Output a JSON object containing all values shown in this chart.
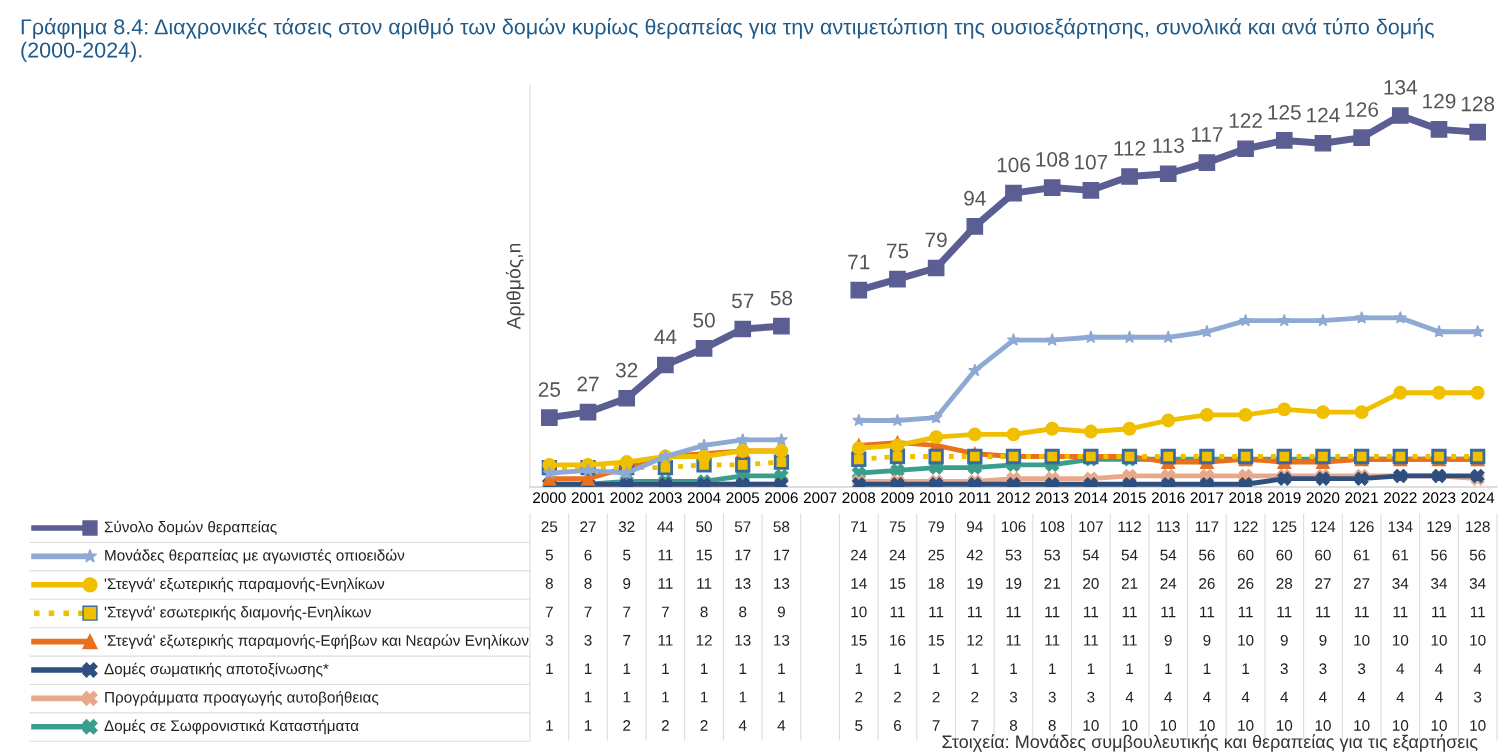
{
  "chart_data": {
    "type": "line",
    "title": "Γράφημα 8.4: Διαχρονικές τάσεις στον αριθμό των δομών κυρίως θεραπείας για την αντιμετώπιση της ουσιοεξάρτησης, συνολικά και ανά τύπο δομής (2000-2024).",
    "ylabel": "Αριθμός,n",
    "annotations": [
      "Στοιχεία: Μονάδες συμβουλευτικής και θεραπείας για τις εξαρτήσεις",
      {
        "text": "25",
        "x": "2000",
        "y": 25
      },
      {
        "text": "27",
        "x": "2001",
        "y": 27
      },
      {
        "text": "32",
        "x": "2002",
        "y": 32
      },
      {
        "text": "44",
        "x": "2003",
        "y": 44
      },
      {
        "text": "50",
        "x": "2004",
        "y": 50
      },
      {
        "text": "57",
        "x": "2005",
        "y": 57
      },
      {
        "text": "58",
        "x": "2006",
        "y": 58
      },
      {
        "text": "71",
        "x": "2008",
        "y": 71
      },
      {
        "text": "75",
        "x": "2009",
        "y": 75
      },
      {
        "text": "79",
        "x": "2010",
        "y": 79
      },
      {
        "text": "94",
        "x": "2011",
        "y": 94
      },
      {
        "text": "106",
        "x": "2012",
        "y": 106
      },
      {
        "text": "108",
        "x": "2013",
        "y": 108
      },
      {
        "text": "107",
        "x": "2014",
        "y": 107
      },
      {
        "text": "112",
        "x": "2015",
        "y": 112
      },
      {
        "text": "113",
        "x": "2016",
        "y": 113
      },
      {
        "text": "117",
        "x": "2017",
        "y": 117
      },
      {
        "text": "122",
        "x": "2018",
        "y": 122
      },
      {
        "text": "125",
        "x": "2019",
        "y": 125
      },
      {
        "text": "124",
        "x": "2020",
        "y": 124
      },
      {
        "text": "126",
        "x": "2021",
        "y": 126
      },
      {
        "text": "134",
        "x": "2022",
        "y": 134
      },
      {
        "text": "129",
        "x": "2023",
        "y": 129
      },
      {
        "text": "128",
        "x": "2024",
        "y": 128
      }
    ],
    "categories": [
      "2000",
      "2001",
      "2002",
      "2003",
      "2004",
      "2005",
      "2006",
      "2007",
      "2008",
      "2009",
      "2010",
      "2011",
      "2012",
      "2013",
      "2014",
      "2015",
      "2016",
      "2017",
      "2018",
      "2019",
      "2020",
      "2021",
      "2022",
      "2023",
      "2024"
    ],
    "ylim": [
      0,
      145
    ],
    "tick_labels": "x",
    "grid": false,
    "legend": "bottom left",
    "data_labels": true,
    "line_style": "solid",
    "series": [
      {
        "name": "Σύνολο δομών θεραπείας",
        "color": "#5b5e92",
        "marker": "square",
        "values": [
          25,
          27,
          32,
          44,
          50,
          57,
          58,
          null,
          71,
          75,
          79,
          94,
          106,
          108,
          107,
          112,
          113,
          117,
          122,
          125,
          124,
          126,
          134,
          129,
          128
        ]
      },
      {
        "name": "Μονάδες θεραπείας με αγωνιστές οπιοειδών",
        "color": "#8eaad4",
        "marker": "star",
        "values": [
          5,
          6,
          5,
          11,
          15,
          17,
          17,
          null,
          24,
          24,
          25,
          42,
          53,
          53,
          54,
          54,
          54,
          56,
          60,
          60,
          60,
          61,
          61,
          56,
          56
        ]
      },
      {
        "name": "'Στεγνά' εξωτερικής παραμονής-Ενηλίκων",
        "color": "#f0c000",
        "marker": "circle",
        "values": [
          8,
          8,
          9,
          11,
          11,
          13,
          13,
          null,
          14,
          15,
          18,
          19,
          19,
          21,
          20,
          21,
          24,
          26,
          26,
          28,
          27,
          27,
          34,
          34,
          34
        ]
      },
      {
        "name": "'Στεγνά' εσωτερικής διαμονής-Ενηλίκων",
        "color": "#f0c000",
        "marker": "square",
        "line_style": "dotted",
        "values": [
          7,
          7,
          7,
          7,
          8,
          8,
          9,
          null,
          10,
          11,
          11,
          11,
          11,
          11,
          11,
          11,
          11,
          11,
          11,
          11,
          11,
          11,
          11,
          11,
          11
        ]
      },
      {
        "name": "'Στεγνά' εξωτερικής παραμονής-Εφήβων και Νεαρών Ενηλίκων",
        "color": "#e8701e",
        "marker": "triangle",
        "values": [
          3,
          3,
          7,
          11,
          12,
          13,
          13,
          null,
          15,
          16,
          15,
          12,
          11,
          11,
          11,
          11,
          9,
          9,
          10,
          9,
          9,
          10,
          10,
          10,
          10
        ]
      },
      {
        "name": "Δομές σωματικής αποτοξίνωσης*",
        "color": "#2f4f7f",
        "marker": "cross",
        "values": [
          1,
          1,
          1,
          1,
          1,
          1,
          1,
          null,
          1,
          1,
          1,
          1,
          1,
          1,
          1,
          1,
          1,
          1,
          1,
          3,
          3,
          3,
          4,
          4,
          4
        ]
      },
      {
        "name": "Προγράμματα προαγωγής αυτοβοήθειας",
        "color": "#e8a88a",
        "marker": "cross",
        "values": [
          null,
          1,
          1,
          1,
          1,
          1,
          1,
          null,
          2,
          2,
          2,
          2,
          3,
          3,
          3,
          4,
          4,
          4,
          4,
          4,
          4,
          4,
          4,
          4,
          3
        ]
      },
      {
        "name": "Δομές σε Σωφρονιστικά Καταστήματα",
        "color": "#3a9e8c",
        "marker": "cross",
        "values": [
          1,
          1,
          2,
          2,
          2,
          4,
          4,
          null,
          5,
          6,
          7,
          7,
          8,
          8,
          10,
          10,
          10,
          10,
          10,
          10,
          10,
          10,
          10,
          10,
          10
        ]
      }
    ]
  }
}
